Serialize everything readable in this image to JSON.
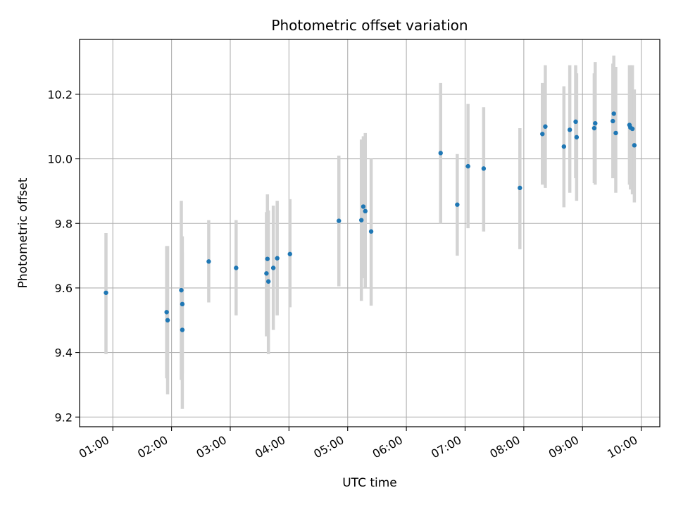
{
  "chart_data": {
    "type": "scatter",
    "title": "Photometric offset variation",
    "xlabel": "UTC time",
    "ylabel": "Photometric offset",
    "x_is_time": true,
    "xlim": [
      "00:26",
      "10:19"
    ],
    "ylim": [
      9.17,
      10.37
    ],
    "x_ticks": [
      "01:00",
      "02:00",
      "03:00",
      "04:00",
      "05:00",
      "06:00",
      "07:00",
      "08:00",
      "09:00",
      "10:00"
    ],
    "y_ticks": [
      9.2,
      9.4,
      9.6,
      9.8,
      10.0,
      10.2
    ],
    "y_tick_labels": [
      "9.2",
      "9.4",
      "9.6",
      "9.8",
      "10.0",
      "10.2"
    ],
    "grid": true,
    "marker_color": "#1f77b4",
    "errorbar_color": "#d3d3d3",
    "series": [
      {
        "points": [
          {
            "x": "00:53",
            "y": 9.585,
            "err_low": 9.395,
            "err_high": 9.77
          },
          {
            "x": "01:55",
            "y": 9.525,
            "err_low": 9.32,
            "err_high": 9.73
          },
          {
            "x": "01:56",
            "y": 9.5,
            "err_low": 9.27,
            "err_high": 9.73
          },
          {
            "x": "02:10",
            "y": 9.593,
            "err_low": 9.315,
            "err_high": 9.87
          },
          {
            "x": "02:11",
            "y": 9.55,
            "err_low": 9.335,
            "err_high": 9.76
          },
          {
            "x": "02:11",
            "y": 9.47,
            "err_low": 9.225,
            "err_high": 9.71
          },
          {
            "x": "02:38",
            "y": 9.682,
            "err_low": 9.555,
            "err_high": 9.81
          },
          {
            "x": "03:06",
            "y": 9.662,
            "err_low": 9.515,
            "err_high": 9.81
          },
          {
            "x": "03:37",
            "y": 9.645,
            "err_low": 9.45,
            "err_high": 9.835
          },
          {
            "x": "03:38",
            "y": 9.69,
            "err_low": 9.49,
            "err_high": 9.89
          },
          {
            "x": "03:39",
            "y": 9.62,
            "err_low": 9.395,
            "err_high": 9.84
          },
          {
            "x": "03:44",
            "y": 9.662,
            "err_low": 9.47,
            "err_high": 9.855
          },
          {
            "x": "03:48",
            "y": 9.692,
            "err_low": 9.515,
            "err_high": 9.87
          },
          {
            "x": "04:01",
            "y": 9.705,
            "err_low": 9.54,
            "err_high": 9.875
          },
          {
            "x": "04:51",
            "y": 9.808,
            "err_low": 9.605,
            "err_high": 10.01
          },
          {
            "x": "05:14",
            "y": 9.81,
            "err_low": 9.56,
            "err_high": 10.06
          },
          {
            "x": "05:16",
            "y": 9.852,
            "err_low": 9.63,
            "err_high": 10.07
          },
          {
            "x": "05:18",
            "y": 9.838,
            "err_low": 9.6,
            "err_high": 10.08
          },
          {
            "x": "05:24",
            "y": 9.775,
            "err_low": 9.545,
            "err_high": 10.0
          },
          {
            "x": "06:35",
            "y": 10.018,
            "err_low": 9.8,
            "err_high": 10.235
          },
          {
            "x": "06:52",
            "y": 9.858,
            "err_low": 9.7,
            "err_high": 10.015
          },
          {
            "x": "07:03",
            "y": 9.977,
            "err_low": 9.785,
            "err_high": 10.17
          },
          {
            "x": "07:19",
            "y": 9.97,
            "err_low": 9.775,
            "err_high": 10.16
          },
          {
            "x": "07:56",
            "y": 9.91,
            "err_low": 9.72,
            "err_high": 10.095
          },
          {
            "x": "08:19",
            "y": 10.077,
            "err_low": 9.92,
            "err_high": 10.235
          },
          {
            "x": "08:22",
            "y": 10.1,
            "err_low": 9.91,
            "err_high": 10.29
          },
          {
            "x": "08:41",
            "y": 10.038,
            "err_low": 9.85,
            "err_high": 10.225
          },
          {
            "x": "08:47",
            "y": 10.09,
            "err_low": 9.895,
            "err_high": 10.29
          },
          {
            "x": "08:53",
            "y": 10.115,
            "err_low": 9.94,
            "err_high": 10.29
          },
          {
            "x": "08:54",
            "y": 10.067,
            "err_low": 9.87,
            "err_high": 10.265
          },
          {
            "x": "09:12",
            "y": 10.095,
            "err_low": 9.925,
            "err_high": 10.265
          },
          {
            "x": "09:13",
            "y": 10.11,
            "err_low": 9.92,
            "err_high": 10.3
          },
          {
            "x": "09:31",
            "y": 10.117,
            "err_low": 9.94,
            "err_high": 10.295
          },
          {
            "x": "09:32",
            "y": 10.14,
            "err_low": 9.96,
            "err_high": 10.32
          },
          {
            "x": "09:34",
            "y": 10.08,
            "err_low": 9.895,
            "err_high": 10.285
          },
          {
            "x": "09:48",
            "y": 10.105,
            "err_low": 9.92,
            "err_high": 10.29
          },
          {
            "x": "09:49",
            "y": 10.097,
            "err_low": 9.905,
            "err_high": 10.29
          },
          {
            "x": "09:51",
            "y": 10.093,
            "err_low": 9.89,
            "err_high": 10.29
          },
          {
            "x": "09:53",
            "y": 10.042,
            "err_low": 9.865,
            "err_high": 10.215
          }
        ]
      }
    ]
  }
}
